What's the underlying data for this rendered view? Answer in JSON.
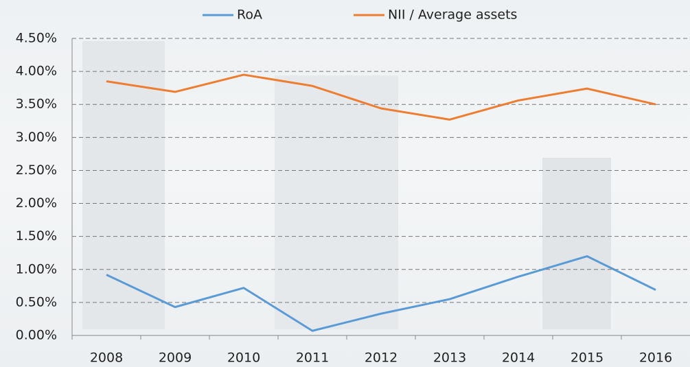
{
  "chart_data": {
    "type": "line",
    "categories": [
      "2008",
      "2009",
      "2010",
      "2011",
      "2012",
      "2013",
      "2014",
      "2015",
      "2016"
    ],
    "series": [
      {
        "name": "RoA",
        "color": "#5b9bd5",
        "values": [
          0.92,
          0.43,
          0.72,
          0.07,
          0.33,
          0.55,
          0.89,
          1.2,
          0.69
        ]
      },
      {
        "name": "NII / Average assets",
        "color": "#ed7d31",
        "values": [
          3.85,
          3.69,
          3.95,
          3.78,
          3.44,
          3.27,
          3.56,
          3.74,
          3.5
        ]
      }
    ],
    "ylim": [
      0,
      4.5
    ],
    "yticks": [
      {
        "value": 0,
        "label": "0.00%"
      },
      {
        "value": 0.5,
        "label": "0.50%"
      },
      {
        "value": 1,
        "label": "1.00%"
      },
      {
        "value": 1.5,
        "label": "1.50%"
      },
      {
        "value": 2,
        "label": "2.00%"
      },
      {
        "value": 2.5,
        "label": "2.50%"
      },
      {
        "value": 3,
        "label": "3.00%"
      },
      {
        "value": 3.5,
        "label": "3.50%"
      },
      {
        "value": 4,
        "label": "4.00%"
      },
      {
        "value": 4.5,
        "label": "4.50%"
      }
    ],
    "grid": true,
    "legend": "top"
  }
}
